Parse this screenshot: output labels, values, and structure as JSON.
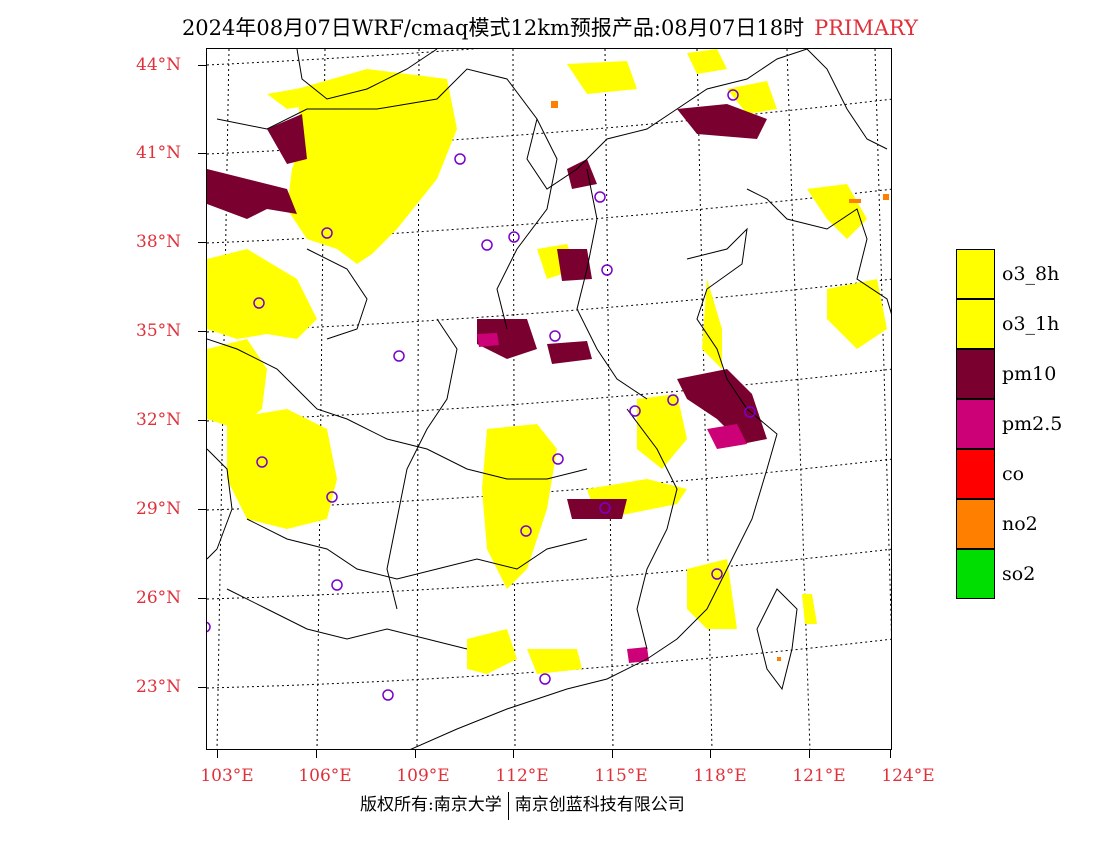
{
  "title": {
    "main": "2024年08月07日WRF/cmaq模式12km预报产品:08月07日18时",
    "tag": "PRIMARY"
  },
  "latitude_labels": [
    "44°N",
    "41°N",
    "38°N",
    "35°N",
    "32°N",
    "29°N",
    "26°N",
    "23°N"
  ],
  "longitude_labels": [
    "103°E",
    "106°E",
    "109°E",
    "112°E",
    "115°E",
    "118°E",
    "121°E",
    "124°E"
  ],
  "legend": {
    "items": [
      {
        "label": "o3_8h",
        "color": "#ffff00"
      },
      {
        "label": "o3_1h",
        "color": "#ffff00"
      },
      {
        "label": "pm10",
        "color": "#7a0030"
      },
      {
        "label": "pm2.5",
        "color": "#cc0077"
      },
      {
        "label": "co",
        "color": "#ff0000"
      },
      {
        "label": "no2",
        "color": "#ff7f00"
      },
      {
        "label": "so2",
        "color": "#00dd00"
      }
    ]
  },
  "footer": {
    "copyright": "版权所有:南京大学",
    "company": "南京创蓝科技有限公司"
  },
  "colors": {
    "label_red": "#e0303a",
    "station_marker": "#7a00cc"
  }
}
